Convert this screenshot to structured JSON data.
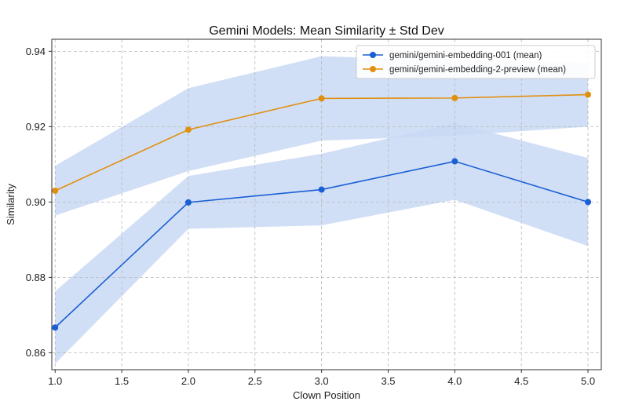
{
  "chart_data": {
    "type": "line",
    "title": "Gemini Models: Mean Similarity ± Std Dev",
    "xlabel": "Clown Position",
    "ylabel": "Similarity",
    "xlim": [
      0.975,
      5.1
    ],
    "ylim": [
      0.8555,
      0.9432
    ],
    "x": [
      1,
      2,
      3,
      4,
      5
    ],
    "x_ticks": [
      1.0,
      1.5,
      2.0,
      2.5,
      3.0,
      3.5,
      4.0,
      4.5,
      5.0
    ],
    "y_ticks": [
      0.86,
      0.88,
      0.9,
      0.92,
      0.94
    ],
    "grid": true,
    "legend_position": "top-right",
    "series": [
      {
        "name": "gemini/gemini-embedding-001 (mean)",
        "color": "#1a5fd4",
        "values": [
          0.8667,
          0.8999,
          0.9033,
          0.9108,
          0.9
        ],
        "std": [
          0.0096,
          0.007,
          0.0095,
          0.0102,
          0.0117
        ]
      },
      {
        "name": "gemini/gemini-embedding-2-preview (mean)",
        "color": "#e0900f",
        "values": [
          0.903,
          0.9192,
          0.9275,
          0.9276,
          0.9285
        ],
        "std": [
          0.0066,
          0.011,
          0.0112,
          0.01,
          0.0085
        ]
      }
    ],
    "band_color": "#c9d9f4"
  }
}
